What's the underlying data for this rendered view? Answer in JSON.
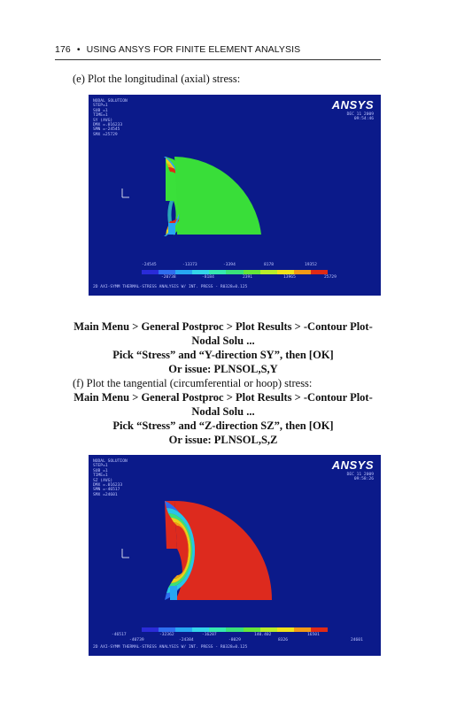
{
  "header": {
    "page_number": "176",
    "bullet": "•",
    "title": "USING ANSYS FOR FINITE ELEMENT ANALYSIS"
  },
  "text": {
    "item_e": "(e) Plot the longitudinal (axial) stress:",
    "menu_path_1a": "Main Menu > General Postproc > Plot Results > -Contour Plot-",
    "menu_path_1b": "Nodal Solu ...",
    "pick_1": "Pick “Stress” and “Y-direction SY”, then [OK]",
    "issue_1": "Or issue: PLNSOL,S,Y",
    "item_f": "(f) Plot the tangential (circumferential or hoop) stress:",
    "menu_path_2a": "Main Menu > General Postproc > Plot Results > -Contour Plot-",
    "menu_path_2b": "Nodal Solu ...",
    "pick_2": "Pick “Stress” and “Z-direction SZ”, then [OK]",
    "issue_2": "Or issue: PLNSOL,S,Z"
  },
  "figure1": {
    "logo": "ANSYS",
    "info_lines": [
      "NODAL SOLUTION",
      "STEP=1",
      "SUB =1",
      "TIME=1",
      "SY       (AVG)",
      "DMX =.016233",
      "SMN =-24545",
      "SMX =25729"
    ],
    "date_lines": [
      "DEC 11 2009",
      "09:54:46"
    ],
    "colorbar_labels_top": [
      "-24545",
      "-13373",
      "-3394",
      "8178",
      "19352"
    ],
    "colorbar_labels_bottom": [
      "-20738",
      "-8184",
      "2391",
      "13965",
      "25729"
    ],
    "caption": "2D AXI-SYMM THERMAL-STRESS ANALYSIS W/ INT. PRESS - R0328=0.125",
    "colors": [
      "#2a2bd8",
      "#2f6ef0",
      "#27a6f2",
      "#33d4ea",
      "#36e8b0",
      "#3ae07a",
      "#66e63a",
      "#b8ec2a",
      "#f0e21a",
      "#f29a16",
      "#e02a16"
    ]
  },
  "figure2": {
    "logo": "ANSYS",
    "info_lines": [
      "NODAL SOLUTION",
      "STEP=1",
      "SUB =1",
      "TIME=1",
      "SZ       (AVG)",
      "DMX =.016233",
      "SMN =-46517",
      "SMX =24601"
    ],
    "date_lines": [
      "DEC 11 2009",
      "09:58:26"
    ],
    "colorbar_labels_top": [
      "-46517",
      "-32362",
      "-16207",
      "140.402",
      "16501"
    ],
    "colorbar_labels_bottom": [
      "-40739",
      "-24384",
      "-8029",
      "8326",
      "24601"
    ],
    "caption": "2D AXI-SYMM THERMAL-STRESS ANALYSIS W/ INT. PRESS - R0328=0.125",
    "colors": [
      "#2a2bd8",
      "#2f6ef0",
      "#27a6f2",
      "#33d4ea",
      "#36e8b0",
      "#3ae07a",
      "#66e63a",
      "#b8ec2a",
      "#f0e21a",
      "#f29a16",
      "#e02a16"
    ]
  }
}
